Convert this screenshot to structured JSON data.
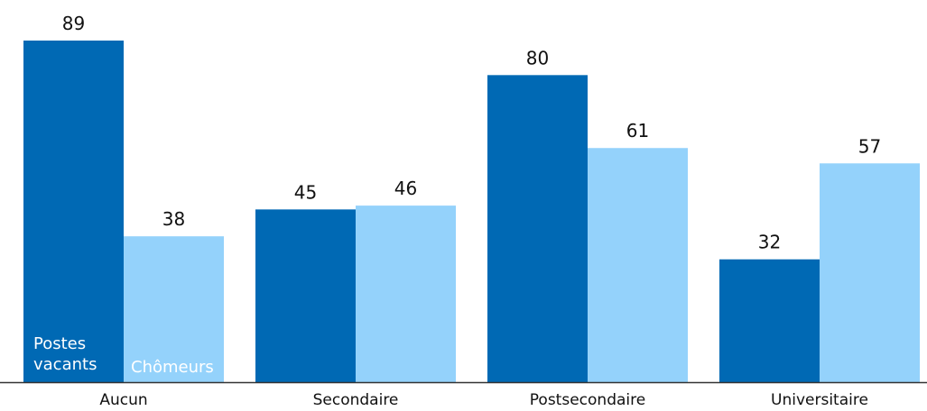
{
  "chart_data": {
    "type": "bar",
    "categories": [
      "Aucun",
      "Secondaire",
      "Postsecondaire",
      "Universitaire"
    ],
    "series": [
      {
        "name": "Postes vacants",
        "values": [
          89,
          45,
          80,
          32
        ],
        "color": "#0069b4"
      },
      {
        "name": "Chômeurs",
        "values": [
          38,
          46,
          61,
          57
        ],
        "color": "#94d2fb"
      }
    ],
    "series_label_lines": [
      [
        "Postes",
        "vacants"
      ],
      [
        "Chômeurs"
      ]
    ],
    "ylim": [
      0,
      100
    ],
    "grid": false,
    "legend": "inside first bars",
    "axis_color": "#333333"
  }
}
